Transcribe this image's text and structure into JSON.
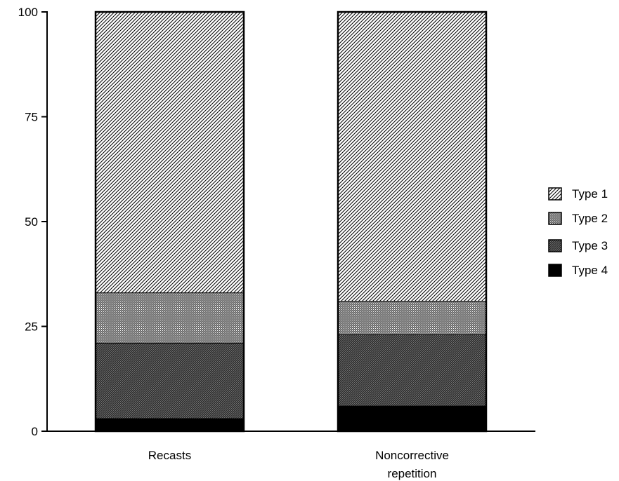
{
  "chart_data": {
    "type": "bar",
    "stacked": true,
    "title": "",
    "xlabel": "",
    "ylabel": "",
    "ylim": [
      0,
      100
    ],
    "yticks": [
      0,
      25,
      50,
      75,
      100
    ],
    "grid": false,
    "legend_position": "right",
    "categories": [
      [
        "Recasts"
      ],
      [
        "Noncorrective",
        "repetition"
      ]
    ],
    "series": [
      {
        "name": "Type 4",
        "values": [
          3,
          6
        ],
        "pattern": "solid"
      },
      {
        "name": "Type 3",
        "values": [
          18,
          17
        ],
        "pattern": "dense-diagonal"
      },
      {
        "name": "Type 2",
        "values": [
          12,
          8
        ],
        "pattern": "dots"
      },
      {
        "name": "Type 1",
        "values": [
          67,
          69
        ],
        "pattern": "diagonal"
      }
    ],
    "legend_order": [
      "Type 1",
      "Type 2",
      "Type 3",
      "Type 4"
    ]
  }
}
